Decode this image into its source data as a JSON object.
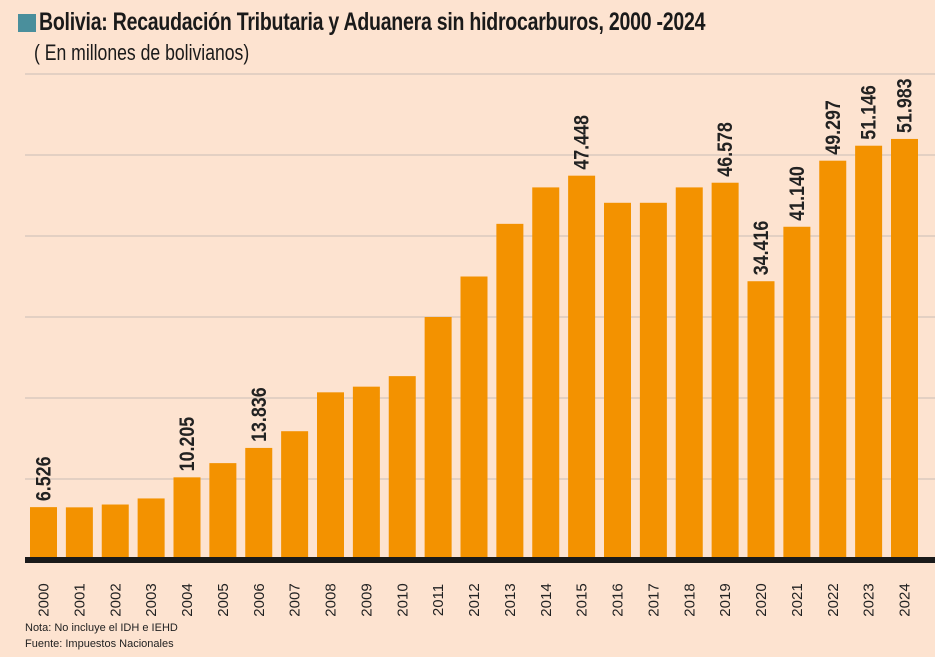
{
  "chart_data": {
    "type": "bar",
    "title": "Bolivia: Recaudación Tributaria y Aduanera sin hidrocarburos, 2000 -2024",
    "subtitle": "( En millones de bolivianos)",
    "categories": [
      "2000",
      "2001",
      "2002",
      "2003",
      "2004",
      "2005",
      "2006",
      "2007",
      "2008",
      "2009",
      "2010",
      "2011",
      "2012",
      "2013",
      "2014",
      "2015",
      "2016",
      "2017",
      "2018",
      "2019",
      "2020",
      "2021",
      "2022",
      "2023",
      "2024"
    ],
    "values": [
      6526,
      6500,
      6850,
      7600,
      10205,
      11960,
      13836,
      15900,
      20700,
      21400,
      22700,
      30000,
      35000,
      41500,
      46000,
      47448,
      44100,
      44100,
      46000,
      46578,
      34416,
      41140,
      49297,
      51146,
      51983
    ],
    "data_labels": {
      "2000": "6.526",
      "2004": "10.205",
      "2006": "13.836",
      "2015": "47.448",
      "2019": "46.578",
      "2020": "34.416",
      "2021": "41.140",
      "2022": "49.297",
      "2023": "51.146",
      "2024": "51.983"
    },
    "ylim": [
      0,
      60000
    ],
    "grid": true,
    "bar_color": "#f39200",
    "accent_color": "#4a8f9c",
    "notes": [
      "Nota: No incluye el IDH e IEHD",
      "Fuente: Impuestos Nacionales"
    ]
  }
}
